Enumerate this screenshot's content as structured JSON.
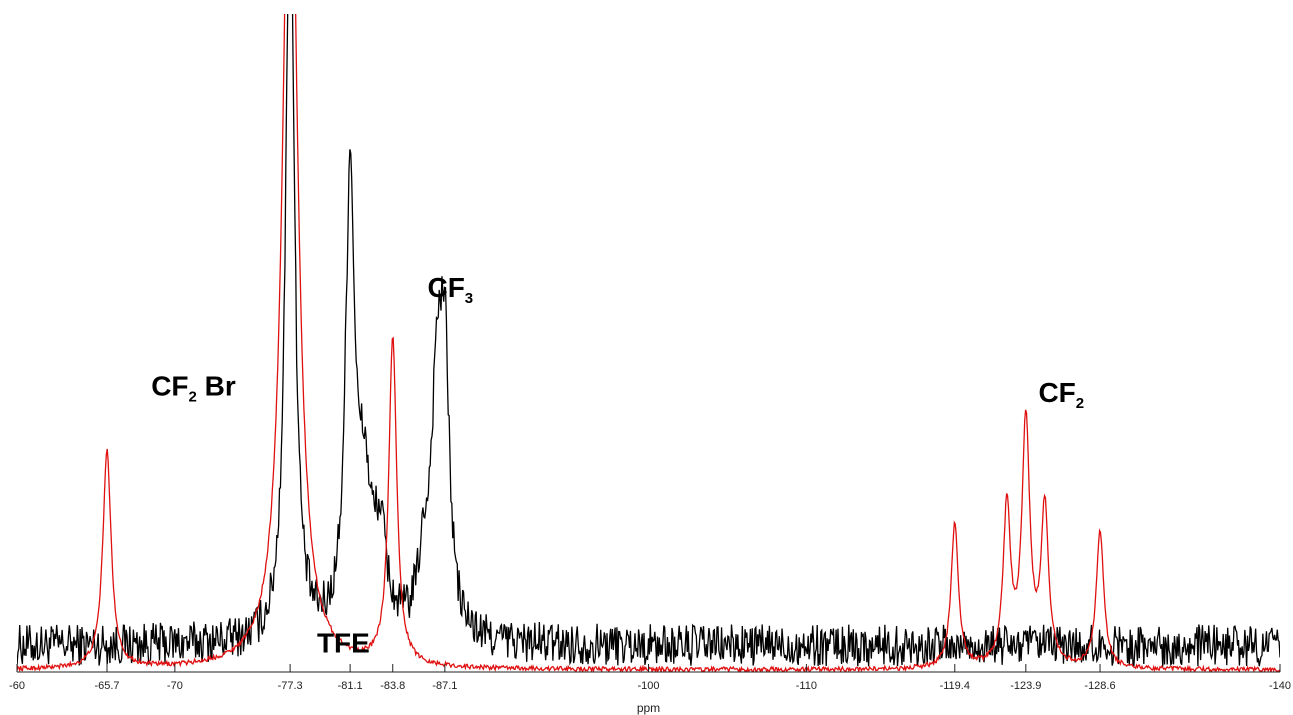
{
  "chart_data": {
    "type": "line",
    "xlabel": "ppm",
    "ylabel": "",
    "xlim": [
      -60,
      -140
    ],
    "x_reversed": true,
    "ylim": [
      0,
      100
    ],
    "grid": false,
    "y_axis_visible": false,
    "tick_values": [
      -60,
      -65.7,
      -70,
      -77.3,
      -81.1,
      -83.8,
      -87.1,
      -100,
      -110,
      -119.4,
      -123.9,
      -128.6,
      -140
    ],
    "tick_labels": [
      "-60",
      "-65.7",
      "-70",
      "-77.3",
      "-81.1",
      "-83.8",
      "-87.1",
      "-100",
      "-110",
      "-119.4",
      "-123.9",
      "-128.6",
      "-140"
    ],
    "series": [
      {
        "color": "#000000",
        "baseline": 4,
        "noise": 3.2,
        "peaks": [
          {
            "x": -77.3,
            "height": 120,
            "width": 0.32
          },
          {
            "x": -81.1,
            "height": 69,
            "width": 0.35
          },
          {
            "x": -82.0,
            "height": 20,
            "width": 0.5
          },
          {
            "x": -83.0,
            "height": 14,
            "width": 0.5
          },
          {
            "x": -86.6,
            "height": 34,
            "width": 0.4
          },
          {
            "x": -87.1,
            "height": 38,
            "width": 0.35
          },
          {
            "x": -85.8,
            "height": 10,
            "width": 0.5
          }
        ]
      },
      {
        "color": "#e01010",
        "baseline": 0.3,
        "noise": 0.35,
        "peaks": [
          {
            "x": -65.7,
            "height": 33,
            "width": 0.32
          },
          {
            "x": -77.3,
            "height": 140,
            "width": 0.55
          },
          {
            "x": -83.8,
            "height": 50,
            "width": 0.3
          },
          {
            "x": -119.4,
            "height": 22,
            "width": 0.28
          },
          {
            "x": -122.7,
            "height": 24,
            "width": 0.28
          },
          {
            "x": -123.9,
            "height": 37,
            "width": 0.3
          },
          {
            "x": -125.1,
            "height": 24,
            "width": 0.28
          },
          {
            "x": -128.6,
            "height": 21,
            "width": 0.28
          }
        ]
      }
    ],
    "annotations": [
      {
        "text": "CF",
        "sub": "2",
        "tail": " Br",
        "x": -68.5,
        "y": 42
      },
      {
        "text": "CF",
        "sub": "3",
        "tail": "",
        "x": -86.0,
        "y": 57
      },
      {
        "text": "CF",
        "sub": "2",
        "tail": "",
        "x": -124.7,
        "y": 41
      },
      {
        "text": "TFE",
        "sub": "",
        "tail": "",
        "x": -79.0,
        "y": 3
      }
    ]
  }
}
